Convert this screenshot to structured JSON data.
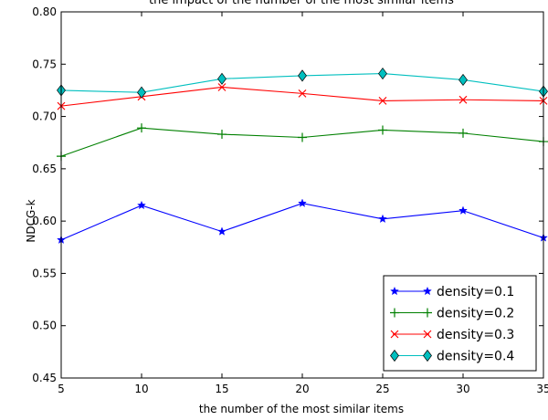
{
  "chart_data": {
    "type": "line",
    "title": "the impact of the number of the most similar items",
    "xlabel": "the number of the most similar items",
    "ylabel": "NDCG-k",
    "x": [
      5,
      10,
      15,
      20,
      25,
      30,
      35
    ],
    "xlim": [
      5,
      35
    ],
    "ylim": [
      0.45,
      0.8
    ],
    "xticks": [
      "5",
      "10",
      "15",
      "20",
      "25",
      "30",
      "35"
    ],
    "yticks": [
      "0.45",
      "0.50",
      "0.55",
      "0.60",
      "0.65",
      "0.70",
      "0.75",
      "0.80"
    ],
    "grid": false,
    "legend_position": "bottom-right",
    "series": [
      {
        "name": "density=0.1",
        "color": "#0000ff",
        "marker": "star",
        "values": [
          0.582,
          0.615,
          0.59,
          0.617,
          0.602,
          0.61,
          0.584
        ]
      },
      {
        "name": "density=0.2",
        "color": "#008000",
        "marker": "plus",
        "values": [
          0.662,
          0.689,
          0.683,
          0.68,
          0.687,
          0.684,
          0.676
        ]
      },
      {
        "name": "density=0.3",
        "color": "#ff0000",
        "marker": "x",
        "values": [
          0.71,
          0.719,
          0.728,
          0.722,
          0.715,
          0.716,
          0.715
        ]
      },
      {
        "name": "density=0.4",
        "color": "#00bfbf",
        "marker": "diamond",
        "values": [
          0.725,
          0.723,
          0.736,
          0.739,
          0.741,
          0.735,
          0.724
        ]
      }
    ]
  }
}
